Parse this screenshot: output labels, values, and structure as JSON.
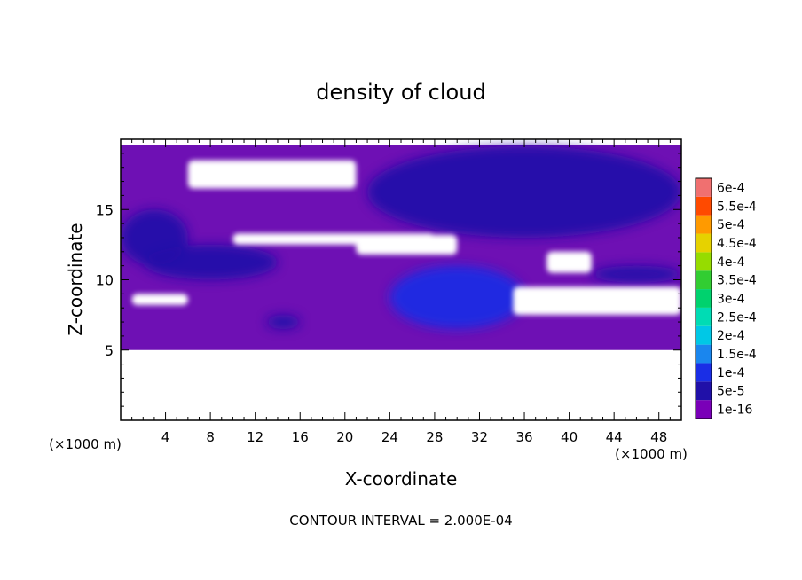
{
  "chart_data": {
    "type": "heatmap",
    "title": "density of cloud",
    "xlabel": "X-coordinate",
    "ylabel": "Z-coordinate",
    "x_unit": "(×1000 m)",
    "x_unit_right": "(×1000 m)",
    "footer": "CONTOUR INTERVAL = 2.000E-04",
    "xlim": [
      0,
      50
    ],
    "ylim": [
      0,
      20
    ],
    "x_ticks": [
      4,
      8,
      12,
      16,
      20,
      24,
      28,
      32,
      36,
      40,
      44,
      48
    ],
    "y_ticks": [
      5,
      10,
      15
    ],
    "colorbar": {
      "labels": [
        "1e-16",
        "5e-5",
        "1e-4",
        "1.5e-4",
        "2e-4",
        "2.5e-4",
        "3e-4",
        "3.5e-4",
        "4e-4",
        "4.5e-4",
        "5e-4",
        "5.5e-4",
        "6e-4"
      ],
      "colors": [
        "#7a00b8",
        "#2010a8",
        "#1a2ee6",
        "#1a86ee",
        "#00c8e6",
        "#00dcb4",
        "#00d26e",
        "#32cd32",
        "#96dc00",
        "#e6d200",
        "#ff9a00",
        "#ff4a00",
        "#f07070"
      ]
    },
    "field": {
      "base_range_z": [
        5,
        19.6
      ],
      "base_color": "#6e10b4",
      "blue_regions": [
        {
          "x": [
            0,
            6
          ],
          "z": [
            11,
            15
          ],
          "level": "5e-5"
        },
        {
          "x": [
            2,
            14
          ],
          "z": [
            10,
            12.5
          ],
          "level": "5e-5"
        },
        {
          "x": [
            22,
            50
          ],
          "z": [
            13,
            19.5
          ],
          "level": "5e-5"
        },
        {
          "x": [
            24,
            36
          ],
          "z": [
            6.5,
            11
          ],
          "level": "1e-4"
        },
        {
          "x": [
            42,
            50
          ],
          "z": [
            9.8,
            11
          ],
          "level": "5e-5"
        },
        {
          "x": [
            13,
            16
          ],
          "z": [
            6.5,
            7.5
          ],
          "level": "5e-5"
        }
      ],
      "gap_regions": [
        {
          "x": [
            6,
            21
          ],
          "z": [
            16.5,
            18.5
          ]
        },
        {
          "x": [
            10,
            28
          ],
          "z": [
            12.5,
            13.3
          ]
        },
        {
          "x": [
            21,
            30
          ],
          "z": [
            11.8,
            13.2
          ]
        },
        {
          "x": [
            38,
            42
          ],
          "z": [
            10.5,
            12
          ]
        },
        {
          "x": [
            1,
            6
          ],
          "z": [
            8.2,
            9
          ]
        },
        {
          "x": [
            35,
            50
          ],
          "z": [
            7.5,
            9.5
          ]
        }
      ]
    }
  }
}
